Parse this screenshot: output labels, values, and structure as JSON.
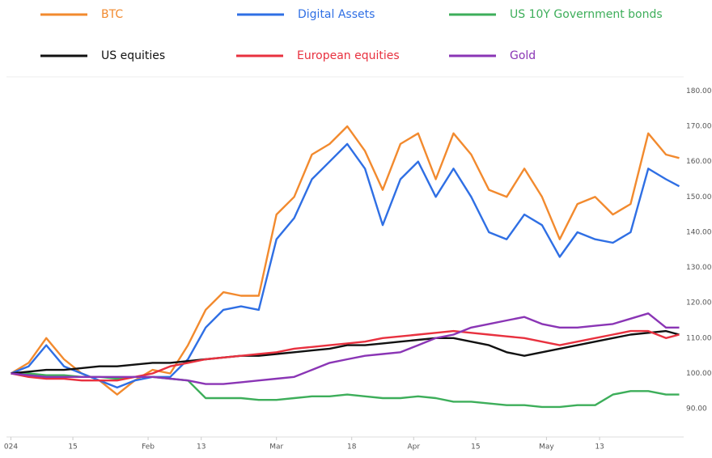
{
  "chart_data": {
    "type": "line",
    "x": [
      0,
      4,
      8,
      12,
      16,
      20,
      24,
      28,
      32,
      36,
      40,
      44,
      48,
      52,
      56,
      60,
      64,
      68,
      72,
      76,
      80,
      84,
      88,
      92,
      96,
      100,
      104,
      108,
      112,
      116,
      120,
      124,
      128,
      132,
      136,
      140,
      144,
      148,
      151
    ],
    "xlim": [
      -1,
      152
    ],
    "xticks": [
      {
        "value": 0,
        "label": "024"
      },
      {
        "value": 14,
        "label": "15"
      },
      {
        "value": 31,
        "label": "Feb"
      },
      {
        "value": 43,
        "label": "13"
      },
      {
        "value": 60,
        "label": "Mar"
      },
      {
        "value": 77,
        "label": "18"
      },
      {
        "value": 91,
        "label": "Apr"
      },
      {
        "value": 105,
        "label": "15"
      },
      {
        "value": 121,
        "label": "May"
      },
      {
        "value": 133,
        "label": "13"
      }
    ],
    "ylim": [
      82,
      184
    ],
    "yticks": [
      {
        "value": 90,
        "label": "90.00"
      },
      {
        "value": 100,
        "label": "100.00"
      },
      {
        "value": 110,
        "label": "110.00"
      },
      {
        "value": 120,
        "label": "120.00"
      },
      {
        "value": 130,
        "label": "130.00"
      },
      {
        "value": 140,
        "label": "140.00"
      },
      {
        "value": 150,
        "label": "150.00"
      },
      {
        "value": 160,
        "label": "160.00"
      },
      {
        "value": 170,
        "label": "170.00"
      },
      {
        "value": 180,
        "label": "180.00"
      }
    ],
    "grid": false,
    "series": [
      {
        "name": "BTC",
        "color": "#f28a2e",
        "values": [
          100,
          103,
          110,
          104,
          100,
          98,
          94,
          98,
          101,
          100,
          108,
          118,
          123,
          122,
          122,
          145,
          150,
          162,
          165,
          170,
          163,
          152,
          165,
          168,
          155,
          168,
          162,
          152,
          150,
          158,
          150,
          138,
          148,
          150,
          145,
          148,
          168,
          162,
          161
        ]
      },
      {
        "name": "Digital Assets",
        "color": "#2f6fe4",
        "values": [
          100,
          102,
          108,
          102,
          100,
          98,
          96,
          98,
          99,
          99,
          104,
          113,
          118,
          119,
          118,
          138,
          144,
          155,
          160,
          165,
          158,
          142,
          155,
          160,
          150,
          158,
          150,
          140,
          138,
          145,
          142,
          133,
          140,
          138,
          137,
          140,
          158,
          155,
          153
        ]
      },
      {
        "name": "US 10Y Government bonds",
        "color": "#3dae5a",
        "values": [
          100,
          100,
          99.5,
          99.5,
          99,
          99,
          98.5,
          99,
          99,
          98.5,
          98,
          93,
          93,
          93,
          92.5,
          92.5,
          93,
          93.5,
          93.5,
          94,
          93.5,
          93,
          93,
          93.5,
          93,
          92,
          92,
          91.5,
          91,
          91,
          90.5,
          90.5,
          91,
          91,
          94,
          95,
          95,
          94,
          94
        ]
      },
      {
        "name": "US equities",
        "color": "#111111",
        "values": [
          100,
          100.5,
          101,
          101,
          101.5,
          102,
          102,
          102.5,
          103,
          103,
          103.5,
          104,
          104.5,
          105,
          105,
          105.5,
          106,
          106.5,
          107,
          108,
          108,
          108.5,
          109,
          109.5,
          110,
          110,
          109,
          108,
          106,
          105,
          106,
          107,
          108,
          109,
          110,
          111,
          111.5,
          112,
          111
        ]
      },
      {
        "name": "European equities",
        "color": "#e8313f",
        "values": [
          100,
          99,
          98.5,
          98.5,
          98,
          98,
          98,
          99,
          100,
          102,
          103,
          104,
          104.5,
          105,
          105.5,
          106,
          107,
          107.5,
          108,
          108.5,
          109,
          110,
          110.5,
          111,
          111.5,
          112,
          111.5,
          111,
          110.5,
          110,
          109,
          108,
          109,
          110,
          111,
          112,
          112,
          110,
          111
        ]
      },
      {
        "name": "Gold",
        "color": "#8a35b5",
        "values": [
          100,
          99.5,
          99,
          99,
          99,
          99,
          99,
          99,
          99,
          98.5,
          98,
          97,
          97,
          97.5,
          98,
          98.5,
          99,
          101,
          103,
          104,
          105,
          105.5,
          106,
          108,
          110,
          111,
          113,
          114,
          115,
          116,
          114,
          113,
          113,
          113.5,
          114,
          115.5,
          117,
          113,
          113
        ]
      }
    ]
  }
}
